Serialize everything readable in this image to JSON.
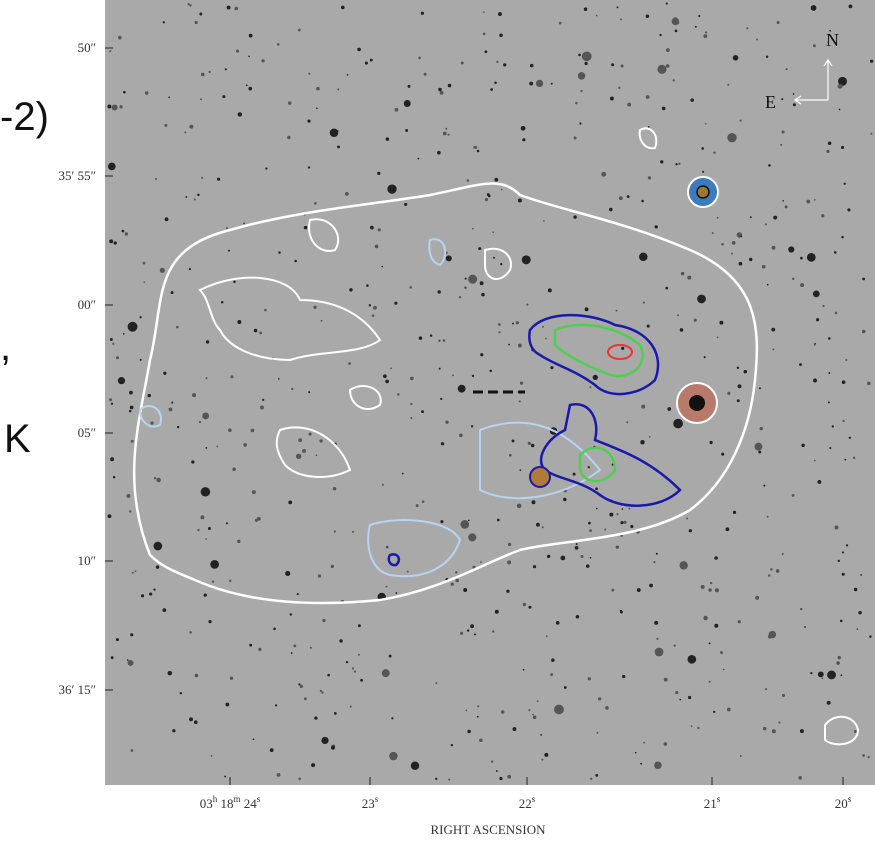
{
  "side_fragments": [
    "-2)",
    ",",
    "K"
  ],
  "y_labels": [
    "50″",
    "35′ 55″",
    "00″",
    "05″",
    "10″",
    "36′ 15″"
  ],
  "x_labels": [
    [
      {
        "text": "03",
        "sup": "h"
      },
      {
        "text": "18",
        "sup": "m"
      },
      {
        "text": "24",
        "sup": "s"
      }
    ],
    [
      {
        "text": "23",
        "sup": "s"
      }
    ],
    [
      {
        "text": "22",
        "sup": "s"
      }
    ],
    [
      {
        "text": "21",
        "sup": "s"
      }
    ],
    [
      {
        "text": "20",
        "sup": "s"
      }
    ]
  ],
  "x_axis_title": "RIGHT ASCENSION",
  "compass": {
    "north": "N",
    "east": "E"
  }
}
